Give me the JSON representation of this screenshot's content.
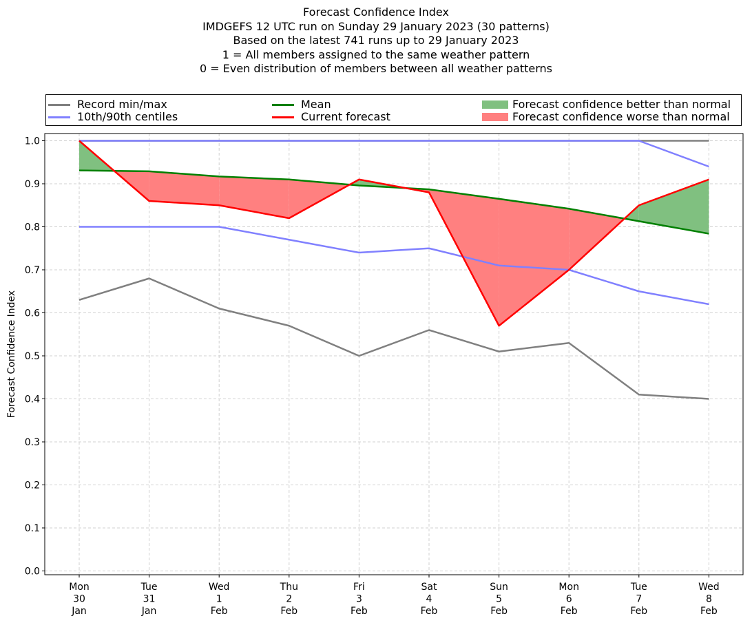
{
  "title_lines": [
    "Forecast Confidence Index",
    "IMDGEFS 12 UTC run on Sunday 29 January 2023 (30 patterns)",
    "Based on the latest 741 runs up to 29 January 2023",
    "1 = All members assigned to the same weather pattern",
    "0 = Even distribution of members between all weather patterns"
  ],
  "legend": {
    "record": "Record min/max",
    "centiles": "10th/90th centiles",
    "mean": "Mean",
    "current": "Current forecast",
    "better": "Forecast confidence better than normal",
    "worse": "Forecast confidence worse than normal"
  },
  "colors": {
    "record": "#808080",
    "centiles": "#8080ff",
    "mean": "#008000",
    "current": "#ff0000",
    "better": "#80c080",
    "worse": "#ff8080",
    "grid": "#d0d0d0"
  },
  "chart_data": {
    "type": "line",
    "ylabel": "Forecast Confidence Index",
    "ylim": [
      0.0,
      1.0
    ],
    "yticks": [
      "0.0",
      "0.1",
      "0.2",
      "0.3",
      "0.4",
      "0.5",
      "0.6",
      "0.7",
      "0.8",
      "0.9",
      "1.0"
    ],
    "grid": true,
    "legend_position": "top",
    "categories": [
      [
        "Mon",
        "30",
        "Jan"
      ],
      [
        "Tue",
        "31",
        "Jan"
      ],
      [
        "Wed",
        "1",
        "Feb"
      ],
      [
        "Thu",
        "2",
        "Feb"
      ],
      [
        "Fri",
        "3",
        "Feb"
      ],
      [
        "Sat",
        "4",
        "Feb"
      ],
      [
        "Sun",
        "5",
        "Feb"
      ],
      [
        "Mon",
        "6",
        "Feb"
      ],
      [
        "Tue",
        "7",
        "Feb"
      ],
      [
        "Wed",
        "8",
        "Feb"
      ]
    ],
    "series": [
      {
        "name": "Record min/max",
        "key": "record_max",
        "values": [
          1.0,
          1.0,
          1.0,
          1.0,
          1.0,
          1.0,
          1.0,
          1.0,
          1.0,
          1.0
        ]
      },
      {
        "name": "Record min/max",
        "key": "record_min",
        "values": [
          0.63,
          0.68,
          0.61,
          0.57,
          0.5,
          0.56,
          0.51,
          0.53,
          0.41,
          0.4
        ]
      },
      {
        "name": "10th/90th centiles",
        "key": "p90",
        "values": [
          1.0,
          1.0,
          1.0,
          1.0,
          1.0,
          1.0,
          1.0,
          1.0,
          1.0,
          0.94
        ]
      },
      {
        "name": "10th/90th centiles",
        "key": "p10",
        "values": [
          0.8,
          0.8,
          0.8,
          0.77,
          0.74,
          0.75,
          0.71,
          0.7,
          0.65,
          0.62
        ]
      },
      {
        "name": "Mean",
        "key": "mean",
        "values": [
          0.931,
          0.929,
          0.917,
          0.91,
          0.896,
          0.887,
          0.865,
          0.842,
          0.813,
          0.784
        ]
      },
      {
        "name": "Current forecast",
        "key": "current",
        "values": [
          1.0,
          0.86,
          0.85,
          0.82,
          0.91,
          0.88,
          0.57,
          0.7,
          0.85,
          0.91
        ]
      }
    ]
  }
}
